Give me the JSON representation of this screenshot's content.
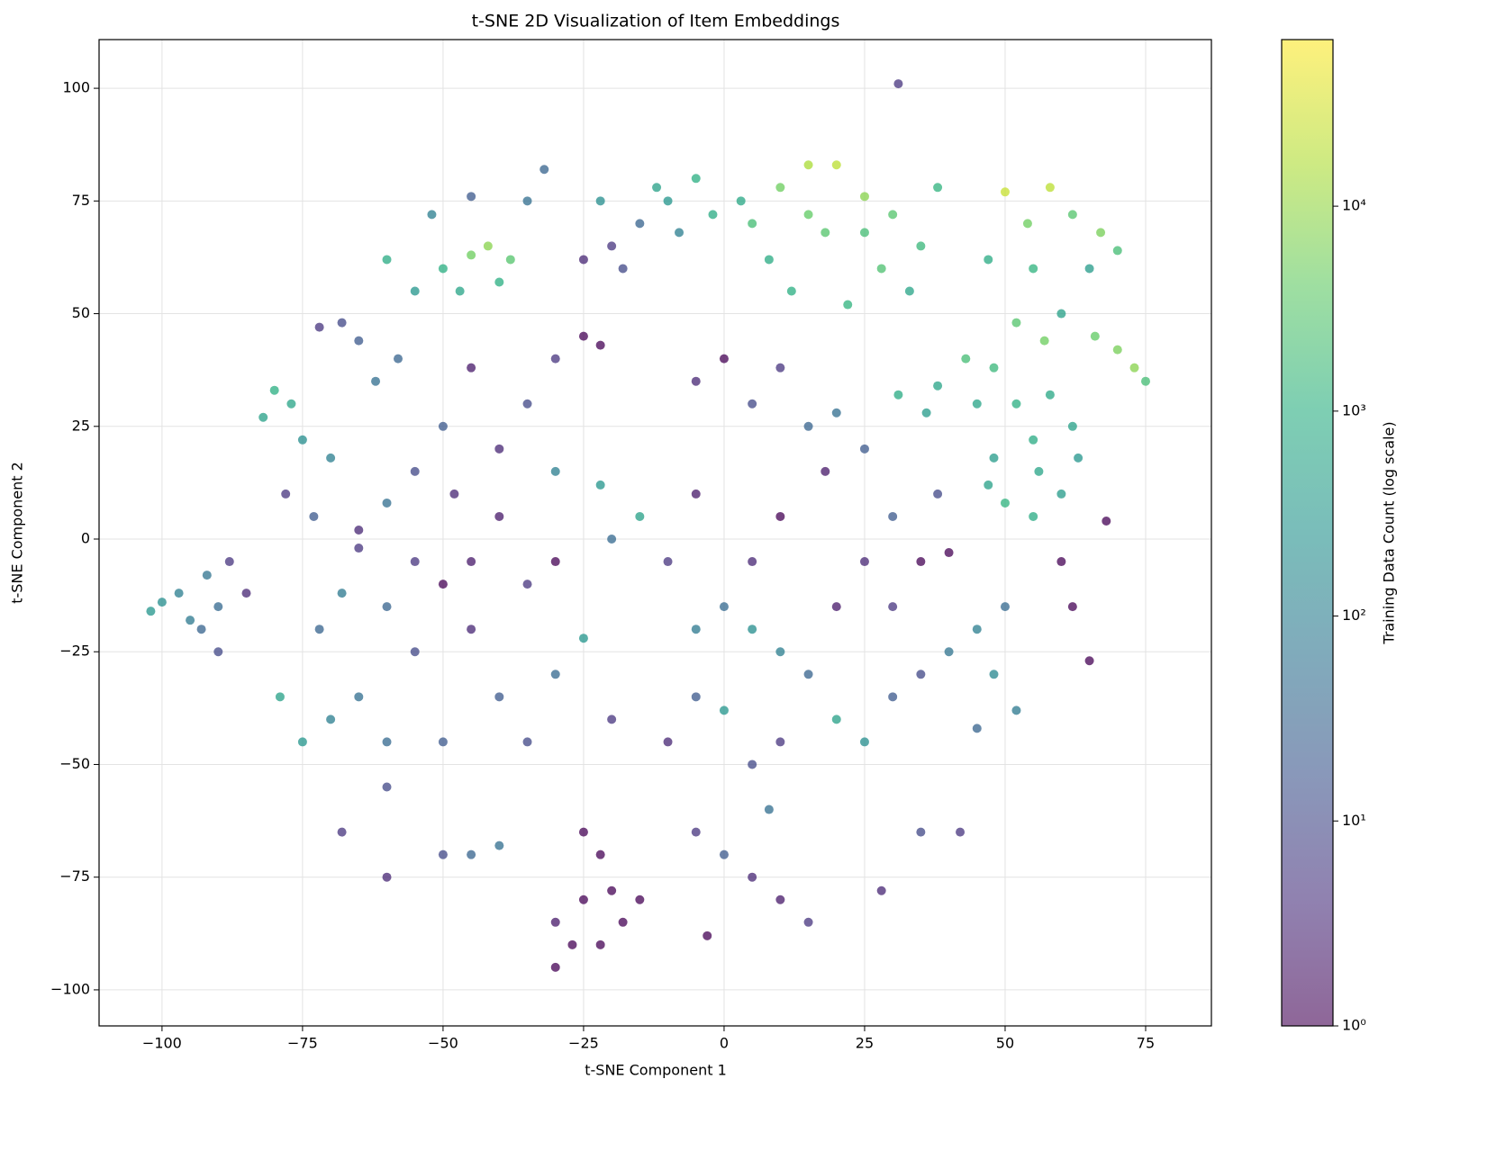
{
  "chart_data": {
    "type": "scatter",
    "title": "t-SNE 2D Visualization of Item Embeddings",
    "xlabel": "t-SNE Component 1",
    "ylabel": "t-SNE Component 2",
    "colorbar_label": "Training Data Count (log scale)",
    "colormap": "viridis",
    "colorbar_scale": "log",
    "clim": [
      1,
      65000
    ],
    "cticks": [
      {
        "value": 1,
        "label": "10⁰"
      },
      {
        "value": 10,
        "label": "10¹"
      },
      {
        "value": 100,
        "label": "10²"
      },
      {
        "value": 1000,
        "label": "10³"
      },
      {
        "value": 10000,
        "label": "10⁴"
      }
    ],
    "grid": true,
    "xlim": [
      -111.2,
      86.7
    ],
    "ylim": [
      -108,
      110.8
    ],
    "xticks": [
      {
        "value": -100,
        "label": "−100"
      },
      {
        "value": -75,
        "label": "−75"
      },
      {
        "value": -50,
        "label": "−50"
      },
      {
        "value": -25,
        "label": "−25"
      },
      0,
      25,
      50,
      75
    ],
    "yticks": [
      {
        "value": -100,
        "label": "−100"
      },
      {
        "value": -75,
        "label": "−75"
      },
      {
        "value": -50,
        "label": "−50"
      },
      {
        "value": -25,
        "label": "−25"
      },
      0,
      25,
      50,
      75,
      100
    ],
    "x": [
      5,
      10,
      15,
      20,
      25,
      30,
      35,
      8,
      18,
      28,
      12,
      22,
      3,
      33,
      38,
      15,
      25,
      50,
      58,
      54,
      62,
      67,
      70,
      47,
      55,
      65,
      60,
      52,
      57,
      66,
      73,
      75,
      70,
      48,
      43,
      38,
      31,
      36,
      45,
      52,
      58,
      62,
      55,
      48,
      56,
      63,
      50,
      55,
      47,
      60,
      -50,
      -45,
      -42,
      -38,
      -47,
      -55,
      -40,
      -60,
      -35,
      -32,
      -45,
      -52,
      -22,
      -15,
      -10,
      -5,
      -12,
      -20,
      -25,
      -18,
      -8,
      -2,
      -80,
      -77,
      -82,
      -75,
      -70,
      -68,
      -65,
      -72,
      -62,
      -58,
      -78,
      -73,
      -65,
      -60,
      -25,
      -22,
      -30,
      -35,
      -45,
      -50,
      -40,
      -30,
      -22,
      -15,
      -20,
      -10,
      -5,
      -5,
      0,
      5,
      10,
      15,
      20,
      25,
      18,
      10,
      5,
      0,
      -5,
      5,
      10,
      15,
      -25,
      -30,
      -40,
      -35,
      -20,
      -10,
      -5,
      0,
      5,
      10,
      20,
      25,
      30,
      35,
      40,
      45,
      48,
      52,
      45,
      50,
      30,
      25,
      35,
      40,
      30,
      38,
      20,
      -50,
      -45,
      -55,
      -60,
      -68,
      -55,
      -65,
      -70,
      -75,
      -60,
      -50,
      -60,
      -45,
      -35,
      -40,
      -55,
      -48,
      -30,
      -25,
      -22,
      -20,
      -18,
      -22,
      -27,
      -30,
      -25,
      -15,
      -30,
      -45,
      -40,
      -50,
      -68,
      -60,
      -5,
      0,
      5,
      10,
      15,
      28,
      35,
      42,
      -3,
      8,
      -100,
      -97,
      -95,
      -92,
      -90,
      -93,
      -88,
      -85,
      -90,
      -102,
      31,
      65,
      62,
      60,
      68,
      -79,
      -72,
      -65
    ],
    "values": [
      70,
      78,
      83,
      83,
      76,
      72,
      65,
      62,
      68,
      60,
      55,
      52,
      75,
      55,
      78,
      72,
      68,
      77,
      78,
      70,
      72,
      68,
      64,
      62,
      60,
      60,
      50,
      48,
      44,
      45,
      38,
      35,
      42,
      38,
      40,
      34,
      32,
      28,
      30,
      30,
      32,
      25,
      22,
      18,
      15,
      18,
      8,
      5,
      12,
      10,
      60,
      63,
      65,
      62,
      55,
      55,
      57,
      62,
      75,
      82,
      76,
      72,
      75,
      70,
      75,
      80,
      78,
      65,
      62,
      60,
      68,
      72,
      33,
      30,
      27,
      22,
      18,
      48,
      44,
      47,
      35,
      40,
      10,
      5,
      2,
      8,
      45,
      43,
      40,
      30,
      38,
      25,
      20,
      15,
      12,
      5,
      0,
      -5,
      10,
      35,
      40,
      30,
      38,
      25,
      28,
      20,
      15,
      5,
      -5,
      -15,
      -20,
      -20,
      -25,
      -30,
      -22,
      -30,
      -35,
      -45,
      -40,
      -45,
      -35,
      -38,
      -50,
      -45,
      -40,
      -45,
      -35,
      -30,
      -25,
      -20,
      -30,
      -38,
      -42,
      -15,
      -15,
      -5,
      -5,
      -3,
      5,
      10,
      -15,
      -10,
      -5,
      -5,
      -15,
      -12,
      -25,
      -35,
      -40,
      -45,
      -45,
      -45,
      -55,
      -20,
      -10,
      5,
      15,
      10,
      -5,
      -65,
      -70,
      -78,
      -85,
      -90,
      -90,
      -95,
      -80,
      -80,
      -85,
      -70,
      -68,
      -70,
      -65,
      -75,
      -65,
      -70,
      -75,
      -80,
      -85,
      -78,
      -65,
      -65,
      -88,
      -60,
      -14,
      -12,
      -18,
      -8,
      -15,
      -20,
      -5,
      -12,
      -25,
      -16,
      101,
      -27,
      -15,
      -5,
      4,
      -35,
      -20,
      -2
    ],
    "color_values": [
      2000,
      5000,
      15000,
      20000,
      8000,
      3000,
      1500,
      800,
      3000,
      2500,
      1000,
      1200,
      700,
      600,
      1200,
      4000,
      2000,
      25000,
      20000,
      5000,
      3000,
      6000,
      2000,
      800,
      1200,
      400,
      500,
      3000,
      5000,
      4000,
      8000,
      2000,
      6000,
      1500,
      2000,
      600,
      800,
      400,
      600,
      1000,
      700,
      500,
      800,
      400,
      600,
      300,
      1200,
      800,
      500,
      400,
      1000,
      5000,
      8000,
      3000,
      600,
      300,
      1000,
      800,
      50,
      30,
      20,
      100,
      200,
      30,
      300,
      1000,
      500,
      5,
      3,
      10,
      100,
      800,
      1000,
      600,
      500,
      200,
      100,
      10,
      20,
      5,
      50,
      30,
      5,
      20,
      3,
      50,
      1,
      1,
      5,
      10,
      2,
      20,
      3,
      100,
      300,
      500,
      40,
      5,
      2,
      3,
      1,
      10,
      5,
      30,
      50,
      20,
      2,
      1,
      3,
      40,
      80,
      200,
      100,
      30,
      300,
      40,
      20,
      10,
      5,
      3,
      20,
      300,
      10,
      5,
      500,
      200,
      20,
      10,
      60,
      100,
      150,
      80,
      30,
      40,
      5,
      3,
      1,
      1,
      20,
      10,
      2,
      1,
      2,
      5,
      30,
      80,
      10,
      50,
      100,
      300,
      40,
      20,
      10,
      3,
      5,
      2,
      10,
      3,
      1,
      1,
      1,
      1,
      1,
      1,
      1,
      1,
      1,
      1,
      2,
      30,
      50,
      10,
      5,
      3,
      5,
      20,
      3,
      2,
      5,
      3,
      10,
      5,
      1,
      50,
      200,
      100,
      80,
      60,
      40,
      30,
      5,
      3,
      10,
      300,
      5,
      1,
      1,
      1,
      1,
      500,
      30,
      5
    ]
  }
}
